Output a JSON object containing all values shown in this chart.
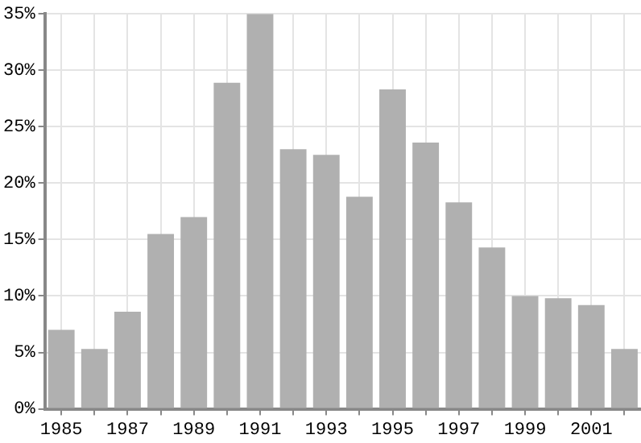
{
  "chart_data": {
    "type": "bar",
    "categories": [
      "1985",
      null,
      "1987",
      null,
      "1989",
      null,
      "1991",
      null,
      "1993",
      null,
      "1995",
      null,
      "1997",
      null,
      "1999",
      null,
      "2001",
      null
    ],
    "values": [
      7.0,
      5.3,
      8.6,
      15.5,
      17.0,
      28.9,
      35.0,
      23.0,
      22.5,
      18.8,
      28.3,
      23.6,
      18.3,
      14.3,
      10.0,
      9.8,
      9.2,
      5.3
    ],
    "color": "#b0b0b0",
    "ylim": [
      0,
      35
    ],
    "yticks": [
      {
        "value": 0,
        "label": "0%"
      },
      {
        "value": 5,
        "label": "5%"
      },
      {
        "value": 10,
        "label": "10%"
      },
      {
        "value": 15,
        "label": "15%"
      },
      {
        "value": 20,
        "label": "20%"
      },
      {
        "value": 25,
        "label": "25%"
      },
      {
        "value": 30,
        "label": "30%"
      },
      {
        "value": 35,
        "label": "35%"
      }
    ],
    "grid": true
  }
}
